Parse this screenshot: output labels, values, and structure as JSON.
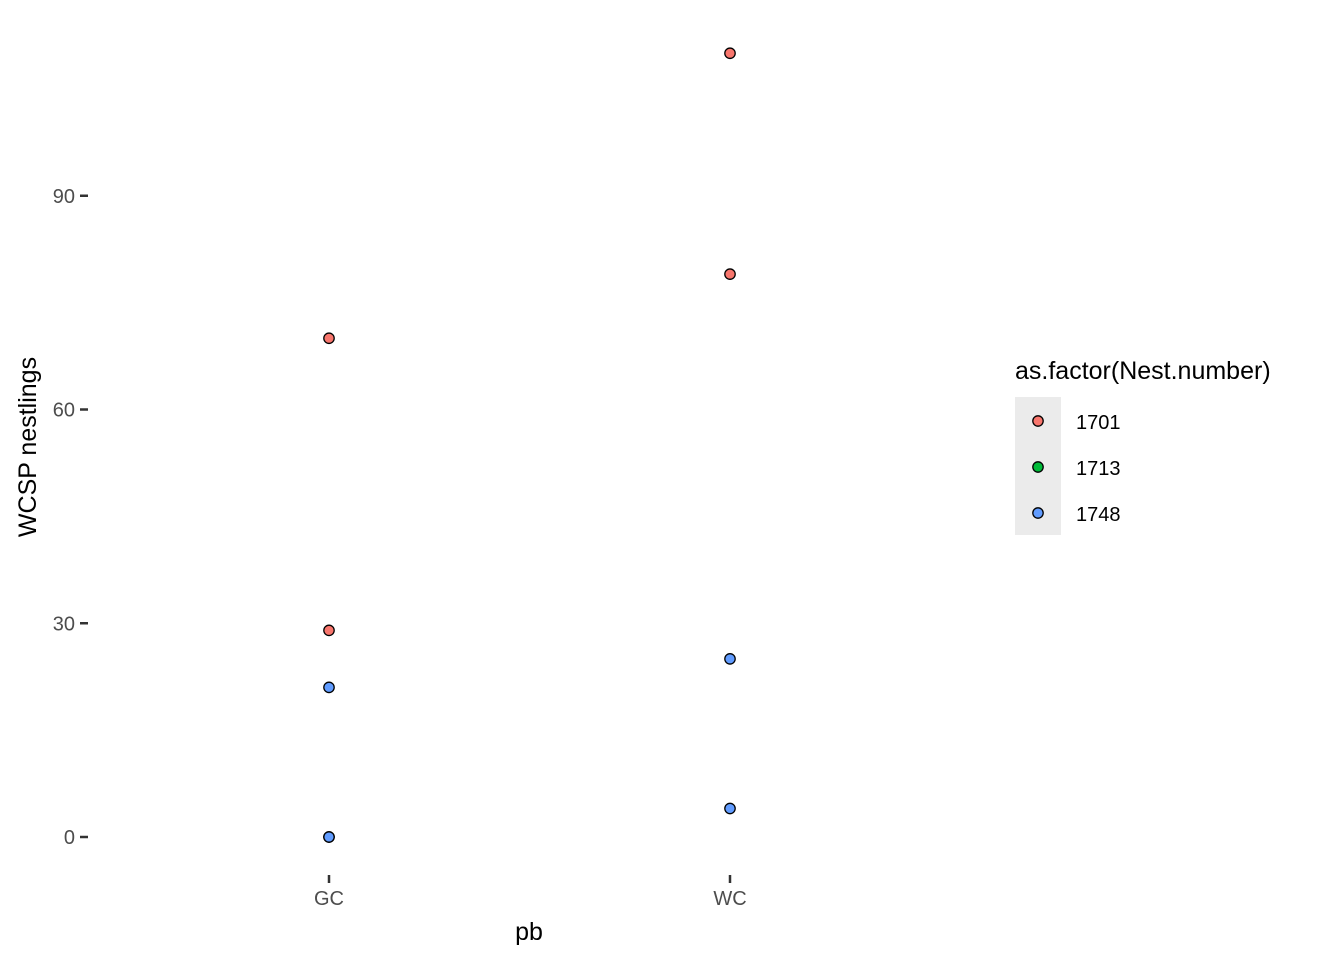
{
  "chart_data": {
    "type": "scatter",
    "title": "",
    "xlabel": "pb",
    "ylabel": "WCSP nestlings",
    "categories": [
      "GC",
      "WC"
    ],
    "yticks": [
      0,
      30,
      60,
      90
    ],
    "ylim": [
      -5.5,
      115.5
    ],
    "grid": false,
    "legend": {
      "title": "as.factor(Nest.number)",
      "position": "right",
      "entries": [
        {
          "label": "1701",
          "color": "#F8766D"
        },
        {
          "label": "1713",
          "color": "#00BA38"
        },
        {
          "label": "1748",
          "color": "#619CFF"
        }
      ]
    },
    "series": [
      {
        "name": "1701",
        "color": "#F8766D",
        "points": [
          {
            "x": "GC",
            "y": 70
          },
          {
            "x": "GC",
            "y": 29
          },
          {
            "x": "WC",
            "y": 110
          },
          {
            "x": "WC",
            "y": 79
          }
        ]
      },
      {
        "name": "1713",
        "color": "#00BA38",
        "points": [
          {
            "x": "GC",
            "y": 0
          }
        ]
      },
      {
        "name": "1748",
        "color": "#619CFF",
        "points": [
          {
            "x": "GC",
            "y": 21
          },
          {
            "x": "GC",
            "y": 0
          },
          {
            "x": "WC",
            "y": 25
          },
          {
            "x": "WC",
            "y": 4
          }
        ]
      }
    ]
  }
}
